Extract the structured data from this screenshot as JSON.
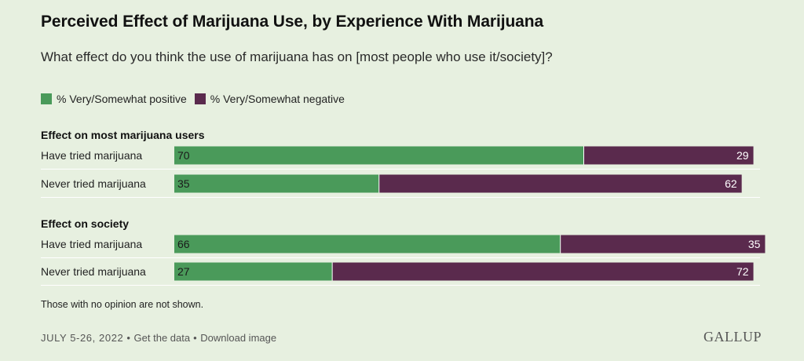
{
  "title": "Perceived Effect of Marijuana Use, by Experience With Marijuana",
  "subtitle": "What effect do you think the use of marijuana has on [most people who use it/society]?",
  "colors": {
    "positive": "#4a9a5a",
    "negative": "#5a2a4d",
    "background": "#e7f0e0"
  },
  "note": "Those with no opinion are not shown.",
  "footer": {
    "date": "JULY 5-26, 2022",
    "get_data": "Get the data",
    "download": "Download image",
    "sep1": "•",
    "sep2": "•"
  },
  "logo": "GALLUP",
  "chart_data": {
    "type": "bar",
    "orientation": "horizontal-stacked",
    "legend": [
      "% Very/Somewhat positive",
      "% Very/Somewhat negative"
    ],
    "groups": [
      {
        "label": "Effect on most marijuana users",
        "rows": [
          {
            "label": "Have tried marijuana",
            "positive": 70,
            "negative": 29
          },
          {
            "label": "Never tried marijuana",
            "positive": 35,
            "negative": 62
          }
        ]
      },
      {
        "label": "Effect on society",
        "rows": [
          {
            "label": "Have tried marijuana",
            "positive": 66,
            "negative": 35
          },
          {
            "label": "Never tried marijuana",
            "positive": 27,
            "negative": 72
          }
        ]
      }
    ]
  }
}
